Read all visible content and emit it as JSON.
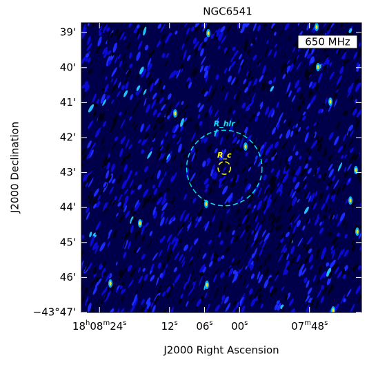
{
  "chart_data": {
    "type": "image",
    "title": "NGC6541",
    "xlabel": "J2000 Right Ascension",
    "ylabel": "J2000 Declination",
    "band_label": "650 MHz",
    "xlim": [
      87.1,
      39.1
    ],
    "ylim": [
      47.0,
      38.72
    ],
    "xticks": [
      {
        "value": 84,
        "label": "18h08m24s"
      },
      {
        "value": 72,
        "label": "12s"
      },
      {
        "value": 66,
        "label": "06s"
      },
      {
        "value": 60,
        "label": "00s"
      },
      {
        "value": 48,
        "label": "07m48s"
      }
    ],
    "yticks": [
      {
        "value": 39,
        "label": "39'"
      },
      {
        "value": 40,
        "label": "40'"
      },
      {
        "value": 41,
        "label": "41'"
      },
      {
        "value": 42,
        "label": "42'"
      },
      {
        "value": 43,
        "label": "43'"
      },
      {
        "value": 44,
        "label": "44'"
      },
      {
        "value": 45,
        "label": "45'"
      },
      {
        "value": 46,
        "label": "46'"
      },
      {
        "value": 47,
        "label": "−43°47'"
      }
    ],
    "circles": [
      {
        "name": "R_hlr",
        "color": "#00e5e5",
        "x": 62.6,
        "y": 42.87,
        "radius": 1.08
      },
      {
        "name": "R_c",
        "color": "#ffff00",
        "x": 62.6,
        "y": 42.87,
        "radius": 0.18
      }
    ]
  }
}
